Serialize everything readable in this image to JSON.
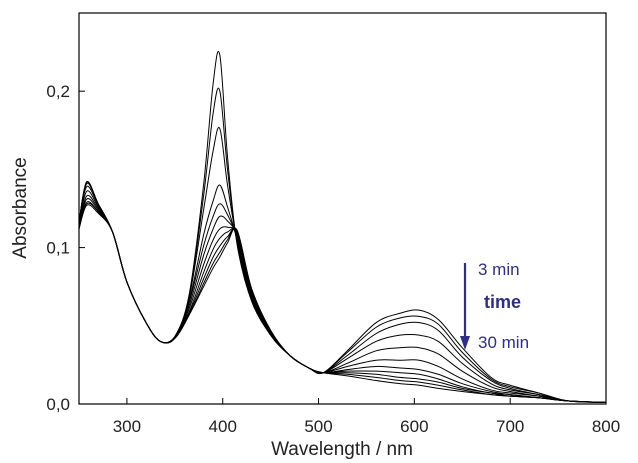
{
  "chart_data": {
    "type": "line",
    "title": "",
    "xlabel": "Wavelength / nm",
    "ylabel": "Absorbance",
    "xlim": [
      250,
      800
    ],
    "ylim": [
      0.0,
      0.25
    ],
    "x_ticks": [
      300,
      400,
      500,
      600,
      700,
      800
    ],
    "x_tick_labels": [
      "300",
      "400",
      "500",
      "600",
      "700",
      "800"
    ],
    "y_ticks": [
      0.0,
      0.1,
      0.2
    ],
    "y_tick_labels": [
      "0,0",
      "0,1",
      "0,2"
    ],
    "grid": false,
    "legend": "none",
    "line_color": "#000000",
    "annotation": {
      "start_label": "3 min",
      "middle_label": "time",
      "end_label": "30 min",
      "arrow_direction": "down",
      "color": "#2e2e8a"
    },
    "x": [
      250,
      258,
      270,
      285,
      300,
      320,
      335,
      350,
      365,
      380,
      390,
      397,
      405,
      415,
      430,
      450,
      470,
      490,
      505,
      530,
      560,
      585,
      605,
      625,
      650,
      680,
      700,
      730,
      760,
      800
    ],
    "series": [
      {
        "values": [
          0.116,
          0.142,
          0.128,
          0.11,
          0.078,
          0.052,
          0.04,
          0.043,
          0.07,
          0.14,
          0.205,
          0.223,
          0.158,
          0.102,
          0.066,
          0.044,
          0.031,
          0.023,
          0.02,
          0.018,
          0.015,
          0.013,
          0.012,
          0.01,
          0.008,
          0.006,
          0.005,
          0.004,
          0.002,
          0.001
        ]
      },
      {
        "values": [
          0.116,
          0.142,
          0.128,
          0.11,
          0.078,
          0.052,
          0.04,
          0.043,
          0.069,
          0.133,
          0.186,
          0.2,
          0.15,
          0.103,
          0.067,
          0.044,
          0.031,
          0.023,
          0.02,
          0.019,
          0.017,
          0.015,
          0.014,
          0.012,
          0.009,
          0.006,
          0.005,
          0.004,
          0.002,
          0.001
        ]
      },
      {
        "values": [
          0.116,
          0.141,
          0.128,
          0.11,
          0.078,
          0.052,
          0.04,
          0.043,
          0.068,
          0.124,
          0.162,
          0.176,
          0.14,
          0.104,
          0.067,
          0.045,
          0.031,
          0.023,
          0.02,
          0.02,
          0.019,
          0.017,
          0.016,
          0.014,
          0.01,
          0.007,
          0.005,
          0.004,
          0.002,
          0.001
        ]
      },
      {
        "values": [
          0.116,
          0.141,
          0.128,
          0.11,
          0.078,
          0.052,
          0.04,
          0.043,
          0.066,
          0.108,
          0.13,
          0.14,
          0.126,
          0.105,
          0.068,
          0.045,
          0.031,
          0.023,
          0.02,
          0.021,
          0.021,
          0.02,
          0.019,
          0.016,
          0.011,
          0.007,
          0.006,
          0.004,
          0.002,
          0.001
        ]
      },
      {
        "values": [
          0.115,
          0.139,
          0.127,
          0.11,
          0.078,
          0.052,
          0.04,
          0.043,
          0.065,
          0.101,
          0.12,
          0.128,
          0.121,
          0.106,
          0.069,
          0.045,
          0.031,
          0.023,
          0.02,
          0.022,
          0.024,
          0.023,
          0.022,
          0.019,
          0.013,
          0.008,
          0.006,
          0.004,
          0.002,
          0.001
        ]
      },
      {
        "values": [
          0.114,
          0.136,
          0.126,
          0.11,
          0.078,
          0.052,
          0.04,
          0.042,
          0.063,
          0.095,
          0.112,
          0.12,
          0.117,
          0.107,
          0.07,
          0.046,
          0.031,
          0.023,
          0.02,
          0.024,
          0.028,
          0.028,
          0.028,
          0.024,
          0.016,
          0.009,
          0.007,
          0.005,
          0.002,
          0.001
        ]
      },
      {
        "values": [
          0.113,
          0.133,
          0.125,
          0.11,
          0.078,
          0.052,
          0.04,
          0.042,
          0.061,
          0.089,
          0.105,
          0.112,
          0.113,
          0.108,
          0.071,
          0.046,
          0.031,
          0.023,
          0.02,
          0.026,
          0.034,
          0.036,
          0.036,
          0.032,
          0.021,
          0.011,
          0.008,
          0.005,
          0.002,
          0.001
        ]
      },
      {
        "values": [
          0.113,
          0.131,
          0.124,
          0.11,
          0.078,
          0.052,
          0.04,
          0.042,
          0.059,
          0.084,
          0.099,
          0.106,
          0.11,
          0.109,
          0.072,
          0.046,
          0.031,
          0.023,
          0.02,
          0.029,
          0.04,
          0.044,
          0.044,
          0.04,
          0.026,
          0.013,
          0.009,
          0.006,
          0.002,
          0.001
        ]
      },
      {
        "values": [
          0.112,
          0.129,
          0.123,
          0.11,
          0.078,
          0.052,
          0.04,
          0.042,
          0.058,
          0.08,
          0.094,
          0.101,
          0.107,
          0.11,
          0.073,
          0.047,
          0.031,
          0.023,
          0.02,
          0.031,
          0.045,
          0.051,
          0.052,
          0.047,
          0.03,
          0.015,
          0.01,
          0.006,
          0.002,
          0.001
        ]
      },
      {
        "values": [
          0.112,
          0.128,
          0.123,
          0.11,
          0.078,
          0.052,
          0.04,
          0.042,
          0.057,
          0.077,
          0.09,
          0.097,
          0.105,
          0.111,
          0.074,
          0.047,
          0.031,
          0.023,
          0.02,
          0.033,
          0.049,
          0.055,
          0.056,
          0.051,
          0.033,
          0.016,
          0.011,
          0.007,
          0.002,
          0.001
        ]
      },
      {
        "values": [
          0.112,
          0.127,
          0.122,
          0.11,
          0.078,
          0.052,
          0.04,
          0.042,
          0.057,
          0.075,
          0.087,
          0.094,
          0.103,
          0.111,
          0.074,
          0.047,
          0.031,
          0.023,
          0.02,
          0.034,
          0.052,
          0.058,
          0.06,
          0.054,
          0.036,
          0.017,
          0.012,
          0.007,
          0.002,
          0.001
        ]
      }
    ]
  }
}
